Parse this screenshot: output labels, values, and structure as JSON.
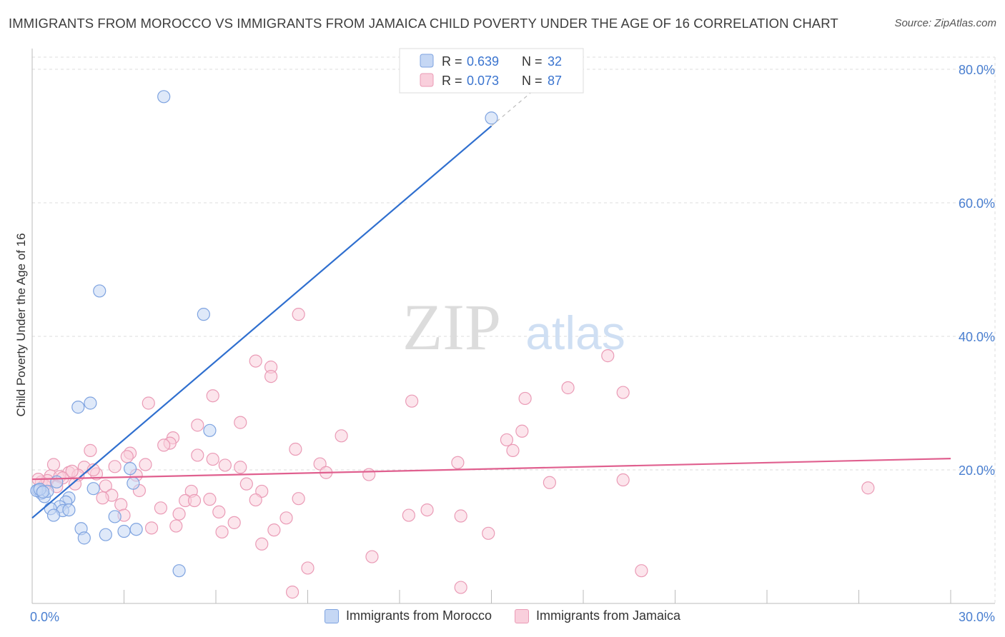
{
  "title": "IMMIGRANTS FROM MOROCCO VS IMMIGRANTS FROM JAMAICA CHILD POVERTY UNDER THE AGE OF 16 CORRELATION CHART",
  "source": "Source: ZipAtlas.com",
  "watermark": {
    "zip": "ZIP",
    "atlas": "atlas"
  },
  "colors": {
    "morocco_fill": "#c5d7f4",
    "morocco_stroke": "#7ea3e0",
    "morocco_line": "#2f6fcf",
    "jamaica_fill": "#f9cfdc",
    "jamaica_stroke": "#ea9bb6",
    "jamaica_line": "#e0608f",
    "axis_text": "#4a7fd0",
    "grid": "#dddddd"
  },
  "legend": {
    "morocco": {
      "r_label": "R =",
      "r_value": "0.639",
      "n_label": "N =",
      "n_value": "32"
    },
    "jamaica": {
      "r_label": "R =",
      "r_value": "0.073",
      "n_label": "N =",
      "n_value": "87"
    }
  },
  "chart_data": {
    "type": "scatter",
    "title": "IMMIGRANTS FROM MOROCCO VS IMMIGRANTS FROM JAMAICA CHILD POVERTY UNDER THE AGE OF 16 CORRELATION CHART",
    "xlabel": "",
    "ylabel": "Child Poverty Under the Age of 16",
    "xlim": [
      0,
      30
    ],
    "ylim": [
      0,
      80
    ],
    "x_tick_labels": [
      "0.0%",
      "30.0%"
    ],
    "y_tick_labels": [
      "20.0%",
      "40.0%",
      "60.0%",
      "80.0%"
    ],
    "y_tick_values": [
      20,
      40,
      60,
      80
    ],
    "series": [
      {
        "name": "Immigrants from Morocco",
        "r": 0.639,
        "n": 32,
        "trend": {
          "x0": 0,
          "y0": 12.8,
          "x1": 15.0,
          "y1": 71.5,
          "dash_x1": 16.8,
          "dash_y1": 78.5
        },
        "points": [
          [
            4.3,
            75.9
          ],
          [
            15.0,
            72.7
          ],
          [
            2.2,
            46.8
          ],
          [
            5.6,
            43.3
          ],
          [
            1.9,
            30.0
          ],
          [
            1.5,
            29.4
          ],
          [
            5.8,
            25.9
          ],
          [
            3.2,
            20.2
          ],
          [
            3.3,
            18.0
          ],
          [
            2.0,
            17.2
          ],
          [
            0.8,
            18.2
          ],
          [
            0.2,
            17.0
          ],
          [
            0.3,
            16.5
          ],
          [
            0.4,
            16.0
          ],
          [
            0.5,
            16.8
          ],
          [
            1.2,
            15.8
          ],
          [
            1.1,
            15.2
          ],
          [
            0.9,
            14.5
          ],
          [
            0.6,
            14.2
          ],
          [
            1.0,
            13.9
          ],
          [
            1.2,
            14.0
          ],
          [
            0.7,
            13.2
          ],
          [
            2.7,
            13.0
          ],
          [
            1.6,
            11.2
          ],
          [
            1.7,
            9.8
          ],
          [
            2.4,
            10.3
          ],
          [
            3.0,
            10.8
          ],
          [
            3.4,
            11.1
          ],
          [
            4.8,
            4.9
          ],
          [
            0.15,
            16.9
          ],
          [
            0.25,
            17.1
          ],
          [
            0.35,
            16.7
          ]
        ]
      },
      {
        "name": "Immigrants from Jamaica",
        "r": 0.073,
        "n": 87,
        "trend": {
          "x0": 0,
          "y0": 18.6,
          "x1": 30,
          "y1": 21.7
        },
        "points": [
          [
            8.7,
            43.3
          ],
          [
            18.8,
            37.1
          ],
          [
            7.3,
            36.3
          ],
          [
            7.8,
            35.4
          ],
          [
            7.8,
            34.0
          ],
          [
            17.5,
            32.3
          ],
          [
            19.3,
            31.6
          ],
          [
            5.9,
            31.1
          ],
          [
            16.1,
            30.7
          ],
          [
            12.4,
            30.3
          ],
          [
            3.8,
            30.0
          ],
          [
            6.8,
            27.1
          ],
          [
            5.4,
            26.7
          ],
          [
            16.0,
            25.8
          ],
          [
            10.1,
            25.1
          ],
          [
            4.6,
            24.8
          ],
          [
            15.5,
            24.5
          ],
          [
            4.5,
            24.0
          ],
          [
            4.3,
            23.7
          ],
          [
            8.6,
            23.1
          ],
          [
            15.7,
            22.9
          ],
          [
            1.9,
            22.9
          ],
          [
            3.2,
            22.5
          ],
          [
            5.4,
            22.2
          ],
          [
            3.1,
            22.0
          ],
          [
            5.9,
            21.6
          ],
          [
            13.9,
            21.1
          ],
          [
            9.4,
            20.9
          ],
          [
            3.7,
            20.8
          ],
          [
            0.7,
            20.8
          ],
          [
            6.3,
            20.7
          ],
          [
            2.7,
            20.5
          ],
          [
            6.8,
            20.4
          ],
          [
            1.7,
            20.4
          ],
          [
            9.6,
            19.6
          ],
          [
            1.2,
            19.6
          ],
          [
            2.1,
            19.4
          ],
          [
            11.0,
            19.3
          ],
          [
            1.5,
            19.2
          ],
          [
            3.4,
            19.2
          ],
          [
            0.6,
            19.1
          ],
          [
            0.9,
            19.0
          ],
          [
            1.0,
            18.8
          ],
          [
            19.3,
            18.5
          ],
          [
            0.3,
            18.2
          ],
          [
            16.9,
            18.1
          ],
          [
            1.4,
            17.9
          ],
          [
            7.0,
            17.9
          ],
          [
            0.4,
            17.7
          ],
          [
            2.4,
            17.6
          ],
          [
            27.3,
            17.3
          ],
          [
            3.5,
            16.9
          ],
          [
            7.5,
            16.8
          ],
          [
            5.2,
            16.8
          ],
          [
            2.6,
            16.2
          ],
          [
            2.3,
            15.8
          ],
          [
            8.7,
            15.7
          ],
          [
            5.8,
            15.6
          ],
          [
            7.3,
            15.5
          ],
          [
            5.0,
            15.4
          ],
          [
            5.3,
            15.4
          ],
          [
            2.9,
            14.8
          ],
          [
            12.9,
            14.0
          ],
          [
            4.2,
            14.3
          ],
          [
            6.1,
            13.7
          ],
          [
            4.8,
            13.4
          ],
          [
            3.0,
            13.2
          ],
          [
            12.3,
            13.2
          ],
          [
            14.0,
            13.1
          ],
          [
            8.3,
            12.8
          ],
          [
            6.6,
            12.1
          ],
          [
            4.7,
            11.6
          ],
          [
            3.9,
            11.3
          ],
          [
            7.9,
            11.0
          ],
          [
            6.2,
            10.7
          ],
          [
            14.9,
            10.5
          ],
          [
            7.5,
            8.9
          ],
          [
            11.1,
            7.0
          ],
          [
            9.0,
            5.3
          ],
          [
            19.9,
            4.9
          ],
          [
            8.5,
            1.7
          ],
          [
            14.0,
            2.4
          ],
          [
            0.5,
            18.4
          ],
          [
            0.8,
            17.5
          ],
          [
            1.3,
            19.8
          ],
          [
            2.0,
            20.0
          ],
          [
            0.2,
            18.6
          ]
        ]
      }
    ]
  },
  "bottom_legend": [
    "Immigrants from Morocco",
    "Immigrants from Jamaica"
  ]
}
